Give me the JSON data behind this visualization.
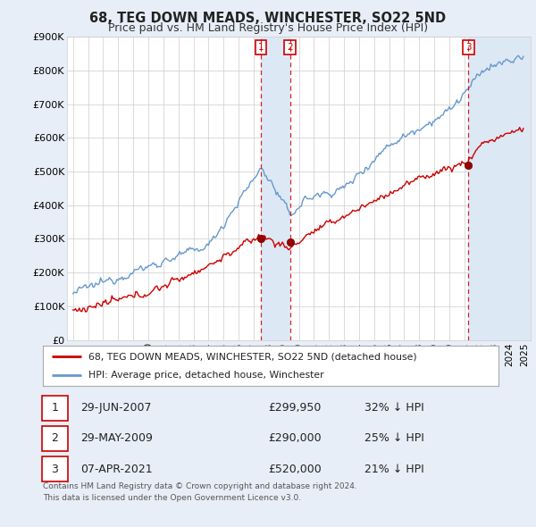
{
  "title": "68, TEG DOWN MEADS, WINCHESTER, SO22 5ND",
  "subtitle": "Price paid vs. HM Land Registry's House Price Index (HPI)",
  "ylabel_ticks": [
    "£0",
    "£100K",
    "£200K",
    "£300K",
    "£400K",
    "£500K",
    "£600K",
    "£700K",
    "£800K",
    "£900K"
  ],
  "ylim": [
    0,
    900000
  ],
  "xlim_start": 1994.6,
  "xlim_end": 2025.4,
  "sale_dates": [
    2007.49,
    2009.41,
    2021.27
  ],
  "sale_prices": [
    299950,
    290000,
    520000
  ],
  "sale_labels": [
    "1",
    "2",
    "3"
  ],
  "legend_red": "68, TEG DOWN MEADS, WINCHESTER, SO22 5ND (detached house)",
  "legend_blue": "HPI: Average price, detached house, Winchester",
  "table_rows": [
    [
      "1",
      "29-JUN-2007",
      "£299,950",
      "32% ↓ HPI"
    ],
    [
      "2",
      "29-MAY-2009",
      "£290,000",
      "25% ↓ HPI"
    ],
    [
      "3",
      "07-APR-2021",
      "£520,000",
      "21% ↓ HPI"
    ]
  ],
  "footnote1": "Contains HM Land Registry data © Crown copyright and database right 2024.",
  "footnote2": "This data is licensed under the Open Government Licence v3.0.",
  "background_color": "#e8eef8",
  "plot_bg_color": "#ffffff",
  "red_color": "#cc0000",
  "blue_color": "#6699cc",
  "shade_color": "#dde8f5"
}
